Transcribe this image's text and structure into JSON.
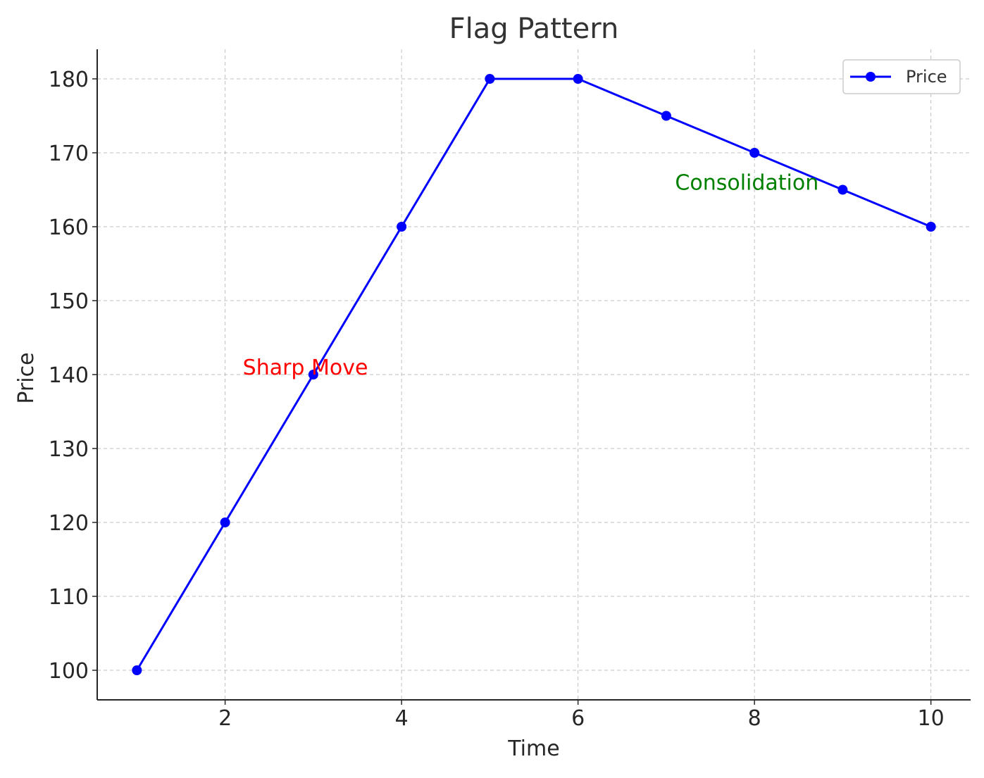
{
  "chart_data": {
    "type": "line",
    "title": "Flag Pattern",
    "xlabel": "Time",
    "ylabel": "Price",
    "xlim": [
      0.55,
      10.45
    ],
    "ylim": [
      96,
      184
    ],
    "xticks": [
      2,
      4,
      6,
      8,
      10
    ],
    "yticks": [
      100,
      110,
      120,
      130,
      140,
      150,
      160,
      170,
      180
    ],
    "grid": true,
    "legend_position": "top-right",
    "series": [
      {
        "name": "Price",
        "color": "#0000ff",
        "marker": "circle",
        "x": [
          1,
          2,
          3,
          4,
          5,
          6,
          7,
          8,
          9,
          10
        ],
        "y": [
          100,
          120,
          140,
          160,
          180,
          180,
          175,
          170,
          165,
          160
        ]
      }
    ],
    "annotations": [
      {
        "text": "Sharp Move",
        "x": 2.2,
        "y": 140,
        "color": "#ff0000"
      },
      {
        "text": "Consolidation",
        "x": 7.1,
        "y": 165,
        "color": "#008000"
      }
    ]
  }
}
